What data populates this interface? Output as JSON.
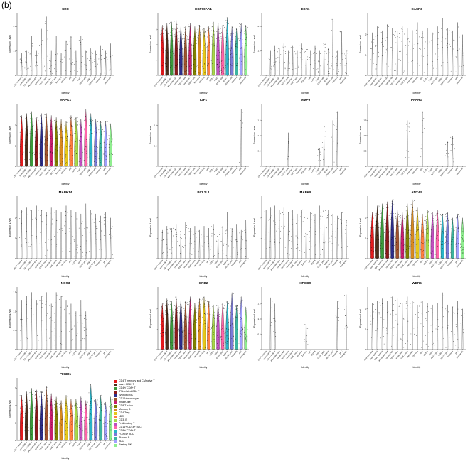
{
  "panel_label": "(b)",
  "common": {
    "ylabel": "Expression Level",
    "xlabel": "Identity"
  },
  "categories": [
    "CD4 T memory and CM naive T",
    "naive CD8+ T",
    "CD4+/ CD8+ T",
    "IFN-related CD4 T",
    "cytotoxic NK",
    "CD16+ monocyte",
    "Innate-like T",
    "CD8 T naive",
    "Memory B",
    "CD4 Treg",
    "cDC",
    "CD3- B",
    "Proliferating T",
    "CD16+ CD14+ pDC",
    "CD8+/ CD8+ T",
    "FOXJ4+ pDC",
    "Plasma B",
    "pDC",
    "Resting NK"
  ],
  "colors": [
    "#e41a1c",
    "#4d2e1a",
    "#3a9a3a",
    "#8b1a1a",
    "#2d2d8a",
    "#a0522d",
    "#c81e6e",
    "#808000",
    "#d98a1e",
    "#e6c81a",
    "#ff7f3f",
    "#a8d84a",
    "#c050c0",
    "#ff66aa",
    "#2ab4c8",
    "#7a7ad8",
    "#3cb4a0",
    "#a0a0ff",
    "#90ee90"
  ],
  "chart_data": [
    {
      "type": "violin",
      "title": "SRC",
      "ylim": [
        0,
        2.5
      ],
      "yticks": [
        "0",
        "1.0",
        "2.0"
      ],
      "colored": false,
      "xticks": [
        "CD4 T memory",
        "naive CD8+ T",
        "CD4+/ CD8+ T",
        "IFN-related CD4",
        "cytotoxic NK",
        "CD16+ mono",
        "Innate-like T",
        "CD8 T naive",
        "Memory B",
        "CD4 Treg",
        "cDC",
        "CD3- B",
        "Prolif T",
        "CD16+ pDC",
        "CD8+ T",
        "FOXJ4+ pDC",
        "Plasma B",
        "pDC",
        "Resting NK"
      ],
      "values": [
        0.9,
        1.0,
        1.6,
        1.0,
        1.9,
        2.4,
        1.0,
        1.6,
        0.9,
        1.4,
        1.6,
        1.0,
        1.6,
        1.0,
        1.1,
        1.0,
        1.2,
        1.0,
        1.3
      ]
    },
    {
      "type": "violin",
      "title": "HSP90AA1",
      "ylim": [
        0,
        4
      ],
      "yticks": [
        "0",
        "1",
        "2",
        "3"
      ],
      "colored": true,
      "xticks": [
        "CD4 T memory",
        "naive CD8+ T",
        "CD4+/ CD8+ T",
        "IFN-related CD4",
        "cytotoxic NK",
        "CD16+ mono",
        "Innate-like T",
        "CD8 T naive",
        "Memory B",
        "CD4 Treg",
        "cDC",
        "CD3- B",
        "Prolif T",
        "CD16+ pDC",
        "CD8+ T",
        "FOXJ4+ pDC",
        "Plasma B",
        "pDC",
        "Resting NK"
      ],
      "values": [
        3.3,
        3.4,
        3.5,
        3.6,
        3.3,
        3.2,
        3.4,
        3.2,
        3.3,
        3.1,
        3.2,
        3.5,
        3.6,
        3.3,
        3.8,
        3.2,
        3.1,
        3.4,
        3.3
      ]
    },
    {
      "type": "violin",
      "title": "ESR1",
      "ylim": [
        0,
        2.5
      ],
      "yticks": [
        "0",
        "1.0",
        "2.0"
      ],
      "colored": false,
      "xticks": [
        "CD4 T memory",
        "naive CD8+ T",
        "CD4+/ CD8+ T",
        "IFN-related CD4",
        "cytotoxic NK",
        "CD16+ mono",
        "Innate-like T",
        "CD8 T naive",
        "Memory B",
        "CD4 Treg",
        "cDC",
        "CD3- B",
        "Prolif T",
        "CD16+ pDC",
        "CD8+ T",
        "FOXJ4+ pDC",
        "Plasma B",
        "pDC",
        "Resting NK"
      ],
      "values": [
        0,
        1.0,
        1.2,
        1.1,
        1.3,
        1.0,
        1.2,
        1.0,
        1.3,
        1.1,
        1.0,
        1.2,
        1.0,
        1.5,
        1.1,
        2.3,
        1.0,
        1.8,
        1.0
      ]
    },
    {
      "type": "violin",
      "title": "CASP3",
      "ylim": [
        0,
        3
      ],
      "yticks": [
        "0",
        "1",
        "2"
      ],
      "colored": false,
      "xticks": [
        "CD4 T memory",
        "naive CD8+ T",
        "CD4+/ CD8+ T",
        "IFN-related CD4",
        "cytotoxic NK",
        "CD16+ mono",
        "Innate-like T",
        "CD8 T naive",
        "Memory B",
        "CD4 Treg",
        "cDC",
        "CD3- B",
        "Prolif T",
        "CD16+ pDC",
        "CD8+ T",
        "FOXJ4+ pDC",
        "Plasma B",
        "pDC",
        "Resting NK"
      ],
      "values": [
        2.1,
        2.4,
        2.2,
        2.5,
        2.3,
        2.2,
        2.4,
        2.3,
        2.2,
        2.6,
        2.2,
        2.3,
        2.1,
        2.4,
        2.8,
        2.3,
        2.2,
        2.6,
        2.0
      ]
    },
    {
      "type": "violin",
      "title": "MAPK1",
      "ylim": [
        0,
        3
      ],
      "yticks": [
        "0",
        "1",
        "2"
      ],
      "colored": true,
      "xticks": [
        "CD4 T memory",
        "naive CD8+ T",
        "CD4+/ CD8+ T",
        "IFN-related CD4",
        "cytotoxic NK",
        "CD16+ mono",
        "Innate-like T",
        "CD8 T naive",
        "Memory B",
        "CD4 Treg",
        "cDC",
        "CD3- B",
        "Prolif T",
        "CD16+ pDC",
        "CD8+ T",
        "FOXJ4+ pDC",
        "Plasma B",
        "pDC",
        "Resting NK"
      ],
      "values": [
        2.5,
        2.6,
        2.7,
        2.4,
        2.6,
        2.6,
        2.5,
        2.4,
        2.3,
        2.2,
        2.5,
        2.4,
        2.3,
        2.8,
        2.6,
        2.3,
        2.2,
        2.2,
        2.1
      ]
    },
    {
      "type": "violin",
      "title": "IGF1",
      "ylim": [
        0,
        1.5
      ],
      "yticks": [
        "0",
        "0.5",
        "1.0"
      ],
      "colored": false,
      "xticks": [
        "CD4 T memory",
        "naive CD8+ T",
        "CD4+/ CD8+ T",
        "IFN-related CD4",
        "cytotoxic NK",
        "CD16+ mono",
        "Innate-like T",
        "CD8 T naive",
        "Memory B",
        "CD4 Treg",
        "cDC",
        "CD3- B",
        "Prolif T",
        "CD16+ pDC",
        "CD8+ T",
        "FOXJ4+ pDC",
        "Plasma B",
        "pDC",
        "Resting NK"
      ],
      "values": [
        0,
        0,
        0,
        0,
        0,
        0,
        0,
        0,
        0,
        0,
        0,
        0,
        0,
        0,
        0,
        0,
        0,
        1.4,
        0
      ]
    },
    {
      "type": "violin",
      "title": "MMP9",
      "ylim": [
        0,
        2
      ],
      "yticks": [
        "0",
        "0.5",
        "1.0",
        "1.5"
      ],
      "colored": false,
      "xticks": [
        "CD4 T memory",
        "naive CD8+ T",
        "CD4+/ CD8+ T",
        "IFN-related CD4",
        "cytotoxic NK",
        "CD16+ mono",
        "Innate-like T",
        "CD8 T naive",
        "Memory B",
        "CD4 Treg",
        "cDC",
        "CD3- B",
        "Prolif T",
        "CD16+ pDC",
        "CD8+ T",
        "FOXJ4+ pDC",
        "Plasma B",
        "pDC",
        "Resting NK"
      ],
      "values": [
        0,
        0,
        0,
        0,
        0,
        1.1,
        0,
        0,
        0,
        0,
        0,
        0,
        0.6,
        1.3,
        0,
        1.5,
        1.8,
        0,
        0
      ]
    },
    {
      "type": "violin",
      "title": "PPARG",
      "ylim": [
        0,
        2
      ],
      "yticks": [
        "0",
        "0.5",
        "1.0",
        "1.5"
      ],
      "colored": false,
      "xticks": [
        "CD4 T memory",
        "naive CD8+ T",
        "CD4+/ CD8+ T",
        "IFN-related CD4",
        "cytotoxic NK",
        "CD16+ mono",
        "Innate-like T",
        "CD8 T naive",
        "Memory B",
        "CD4 Treg",
        "cDC",
        "CD3- B",
        "Prolif T",
        "CD16+ pDC",
        "CD8+ T",
        "FOXJ4+ pDC",
        "Plasma B",
        "pDC",
        "Resting NK"
      ],
      "values": [
        0,
        0,
        0,
        0,
        0,
        0,
        0,
        1.5,
        0,
        0,
        1.8,
        0,
        0,
        0,
        0,
        0.8,
        1.0,
        0,
        0
      ]
    },
    {
      "type": "violin",
      "title": "MAPK14",
      "ylim": [
        0,
        3
      ],
      "yticks": [
        "0",
        "1",
        "2"
      ],
      "colored": false,
      "xticks": [
        "CD4 T memory",
        "naive CD8+ T",
        "CD4+/ CD8+ T",
        "IFN-related CD4",
        "cytotoxic NK",
        "CD16+ mono",
        "Innate-like T",
        "CD8 T naive",
        "Memory B",
        "CD4 Treg",
        "cDC",
        "CD3- B",
        "Prolif T",
        "CD16+ pDC",
        "CD8+ T",
        "FOXJ4+ pDC",
        "Plasma B",
        "pDC",
        "Resting NK"
      ],
      "values": [
        2.4,
        2.5,
        2.4,
        2.6,
        2.4,
        2.3,
        2.5,
        2.4,
        2.3,
        2.6,
        2.4,
        2.3,
        2.2,
        2.7,
        2.4,
        2.2,
        2.1,
        2.3,
        2.0
      ]
    },
    {
      "type": "violin",
      "title": "BCL2L1",
      "ylim": [
        0,
        3
      ],
      "yticks": [
        "0",
        "1",
        "2"
      ],
      "colored": false,
      "xticks": [
        "CD4 T memory",
        "naive CD8+ T",
        "CD4+/ CD8+ T",
        "IFN-related CD4",
        "cytotoxic NK",
        "CD16+ mono",
        "Innate-like T",
        "CD8 T naive",
        "Memory B",
        "CD4 Treg",
        "cDC",
        "CD3- B",
        "Prolif T",
        "CD16+ pDC",
        "CD8+ T",
        "FOXJ4+ pDC",
        "Plasma B",
        "pDC",
        "Resting NK"
      ],
      "values": [
        1.4,
        1.6,
        1.5,
        1.7,
        1.6,
        1.8,
        1.5,
        1.6,
        1.4,
        1.6,
        1.5,
        1.7,
        1.3,
        1.6,
        2.3,
        1.5,
        1.7,
        1.4,
        1.9
      ]
    },
    {
      "type": "violin",
      "title": "MAPK8",
      "ylim": [
        0,
        3
      ],
      "yticks": [
        "0",
        "1",
        "2"
      ],
      "colored": false,
      "xticks": [
        "CD4 T memory",
        "naive CD8+ T",
        "CD4+/ CD8+ T",
        "IFN-related CD4",
        "cytotoxic NK",
        "CD16+ mono",
        "Innate-like T",
        "CD8 T naive",
        "Memory B",
        "CD4 Treg",
        "cDC",
        "CD3- B",
        "Prolif T",
        "CD16+ pDC",
        "CD8+ T",
        "FOXJ4+ pDC",
        "Plasma B",
        "pDC",
        "Resting NK"
      ],
      "values": [
        2.4,
        2.5,
        2.6,
        2.4,
        2.5,
        2.3,
        2.4,
        2.2,
        2.4,
        2.1,
        2.3,
        2.2,
        2.6,
        2.5,
        2.4,
        2.2,
        2.1,
        2.3,
        1.9
      ]
    },
    {
      "type": "violin",
      "title": "ANXA5",
      "ylim": [
        0,
        3
      ],
      "yticks": [
        "0",
        "1",
        "2"
      ],
      "colored": true,
      "xticks": [
        "CD4 T memory",
        "naive CD8+ T",
        "CD4+/ CD8+ T",
        "IFN-related CD4",
        "cytotoxic NK",
        "CD16+ mono",
        "Innate-like T",
        "CD8 T naive",
        "Memory B",
        "CD4 Treg",
        "cDC",
        "CD3- B",
        "Prolif T",
        "CD16+ pDC",
        "CD8+ T",
        "FOXJ4+ pDC",
        "Plasma B",
        "pDC",
        "Resting NK"
      ],
      "values": [
        2.3,
        2.6,
        2.7,
        2.8,
        2.9,
        2.4,
        2.3,
        2.7,
        2.9,
        2.5,
        2.2,
        2.4,
        2.3,
        2.4,
        2.2,
        2.3,
        2.0,
        2.2,
        2.0
      ]
    },
    {
      "type": "violin",
      "title": "NOS3",
      "ylim": [
        0,
        1.6
      ],
      "yticks": [
        "0",
        "0.5",
        "1.0",
        "1.5"
      ],
      "colored": false,
      "xticks": [
        "CD4 T memory",
        "naive CD8+ T",
        "CD4+/ CD8+ T",
        "IFN-related CD4",
        "cytotoxic NK",
        "CD16+ mono",
        "Innate-like T",
        "CD8 T naive",
        "Memory B",
        "CD4 Treg",
        "cDC",
        "CD3- B",
        "Prolif T",
        "CD16+ pDC",
        "CD8+ T",
        "FOXJ4+ pDC",
        "Plasma B",
        "pDC",
        "Resting NK"
      ],
      "values": [
        1.3,
        1.4,
        1.5,
        1.3,
        1.4,
        1.5,
        1.2,
        1.5,
        1.4,
        1.3,
        1.2,
        1.0,
        1.3,
        1.0,
        0,
        0,
        0,
        0,
        0
      ]
    },
    {
      "type": "violin",
      "title": "GRB2",
      "ylim": [
        0,
        3
      ],
      "yticks": [
        "0",
        "1",
        "2"
      ],
      "colored": true,
      "xticks": [
        "CD4 T memory",
        "naive CD8+ T",
        "CD4+/ CD8+ T",
        "IFN-related CD4",
        "cytotoxic NK",
        "CD16+ mono",
        "Innate-like T",
        "CD8 T naive",
        "Memory B",
        "CD4 Treg",
        "cDC",
        "CD3- B",
        "Prolif T",
        "CD16+ pDC",
        "CD8+ T",
        "FOXJ4+ pDC",
        "Plasma B",
        "pDC",
        "Resting NK"
      ],
      "values": [
        2.3,
        2.5,
        2.4,
        2.6,
        2.5,
        2.4,
        2.6,
        2.3,
        2.5,
        2.6,
        2.4,
        2.2,
        2.3,
        2.3,
        2.4,
        2.8,
        2.2,
        2.6,
        2.1
      ]
    },
    {
      "type": "violin",
      "title": "HPGDS",
      "ylim": [
        0,
        2
      ],
      "yticks": [
        "0",
        "0.5",
        "1.0",
        "1.5"
      ],
      "colored": false,
      "xticks": [
        "CD4 T memory",
        "naive CD8+ T",
        "CD4+/ CD8+ T",
        "IFN-related CD4",
        "cytotoxic NK",
        "CD16+ mono",
        "Innate-like T",
        "CD8 T naive",
        "Memory B",
        "CD4 Treg",
        "cDC",
        "CD3- B",
        "Prolif T",
        "CD16+ pDC",
        "CD8+ T",
        "FOXJ4+ pDC",
        "Plasma B",
        "pDC",
        "Resting NK"
      ],
      "values": [
        0,
        1.7,
        1.5,
        0,
        0,
        0,
        0,
        0,
        0,
        1.3,
        0,
        0,
        0,
        0,
        0,
        0,
        1.6,
        0,
        1.8
      ]
    },
    {
      "type": "violin",
      "title": "WDR5",
      "ylim": [
        0,
        3
      ],
      "yticks": [
        "0",
        "1",
        "2"
      ],
      "colored": false,
      "xticks": [
        "CD4 T memory",
        "naive CD8+ T",
        "CD4+/ CD8+ T",
        "IFN-related CD4",
        "cytotoxic NK",
        "CD16+ mono",
        "Innate-like T",
        "CD8 T naive",
        "Memory B",
        "CD4 Treg",
        "cDC",
        "CD3- B",
        "Prolif T",
        "CD16+ pDC",
        "CD8+ T",
        "FOXJ4+ pDC",
        "Plasma B",
        "pDC",
        "Resting NK"
      ],
      "values": [
        2.3,
        2.4,
        2.5,
        2.4,
        2.6,
        2.5,
        2.3,
        2.6,
        2.4,
        2.2,
        2.4,
        2.3,
        2.2,
        2.3,
        2.8,
        2.2,
        2.1,
        2.4,
        2.0
      ]
    },
    {
      "type": "violin",
      "title": "PIK3R1",
      "ylim": [
        0,
        3.5
      ],
      "yticks": [
        "0",
        "1",
        "2",
        "3"
      ],
      "colored": true,
      "xticks": [
        "CD4 T memory",
        "naive CD8+ T",
        "CD4+/ CD8+ T",
        "IFN-related CD4",
        "cytotoxic NK",
        "CD16+ mono",
        "Innate-like T",
        "CD8 T naive",
        "Memory B",
        "CD4 Treg",
        "cDC",
        "CD3- B",
        "Prolif T",
        "CD16+ pDC",
        "CD8+ T",
        "FOXJ4+ pDC",
        "Plasma B",
        "pDC",
        "Resting NK"
      ],
      "values": [
        2.6,
        2.8,
        3.0,
        2.9,
        2.8,
        3.1,
        2.7,
        2.5,
        2.3,
        2.6,
        2.4,
        2.4,
        2.5,
        2.3,
        3.2,
        2.4,
        2.6,
        2.2,
        2.5
      ]
    }
  ]
}
